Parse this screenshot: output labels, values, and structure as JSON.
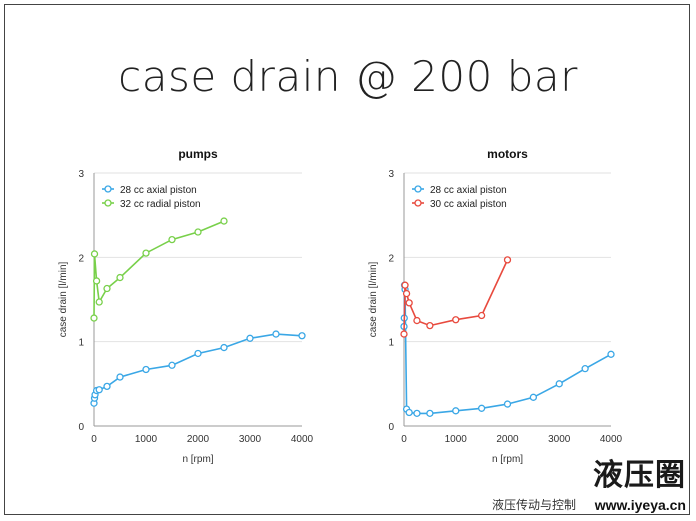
{
  "slide": {
    "title": "case drain @ 200 bar"
  },
  "watermark": {
    "logo_text": "液压圈",
    "subtitle": "液压传动与控制",
    "url": "www.iyeya.cn"
  },
  "chart_data": [
    {
      "type": "line",
      "title": "pumps",
      "xlabel": "n [rpm]",
      "ylabel": "case drain [l/min]",
      "xlim": [
        0,
        4000
      ],
      "ylim": [
        0,
        3
      ],
      "xticks": [
        0,
        1000,
        2000,
        3000,
        4000
      ],
      "yticks": [
        0,
        1,
        2,
        3
      ],
      "grid": true,
      "legend_position": "top-left",
      "series": [
        {
          "name": "28 cc axial piston",
          "color": "#3aa7e6",
          "x": [
            0,
            10,
            20,
            50,
            100,
            250,
            500,
            1000,
            1500,
            2000,
            2500,
            3000,
            3500,
            4000
          ],
          "y": [
            0.27,
            0.33,
            0.37,
            0.42,
            0.43,
            0.47,
            0.58,
            0.67,
            0.72,
            0.86,
            0.93,
            1.04,
            1.09,
            1.07
          ]
        },
        {
          "name": "32 cc radial piston",
          "color": "#78d04a",
          "x": [
            0,
            10,
            50,
            100,
            250,
            500,
            1000,
            1500,
            2000,
            2500
          ],
          "y": [
            1.28,
            2.04,
            1.72,
            1.47,
            1.63,
            1.76,
            2.05,
            2.21,
            2.3,
            2.43
          ]
        }
      ]
    },
    {
      "type": "line",
      "title": "motors",
      "xlabel": "n [rpm]",
      "ylabel": "case drain [l/min]",
      "xlim": [
        0,
        4000
      ],
      "ylim": [
        0,
        3
      ],
      "xticks": [
        0,
        1000,
        2000,
        3000,
        4000
      ],
      "yticks": [
        0,
        1,
        2,
        3
      ],
      "grid": true,
      "legend_position": "top-left",
      "series": [
        {
          "name": "28 cc axial piston",
          "color": "#3aa7e6",
          "x": [
            0,
            5,
            10,
            20,
            50,
            100,
            250,
            500,
            1000,
            1500,
            2000,
            2500,
            3000,
            3500,
            4000
          ],
          "y": [
            1.18,
            1.28,
            1.67,
            1.62,
            0.2,
            0.16,
            0.15,
            0.15,
            0.18,
            0.21,
            0.26,
            0.34,
            0.5,
            0.68,
            0.85
          ]
        },
        {
          "name": "30 cc axial piston",
          "color": "#e84a3e",
          "x": [
            0,
            20,
            50,
            100,
            250,
            500,
            1000,
            1500,
            2000
          ],
          "y": [
            1.09,
            1.67,
            1.57,
            1.46,
            1.25,
            1.19,
            1.26,
            1.31,
            1.97
          ]
        }
      ]
    }
  ]
}
